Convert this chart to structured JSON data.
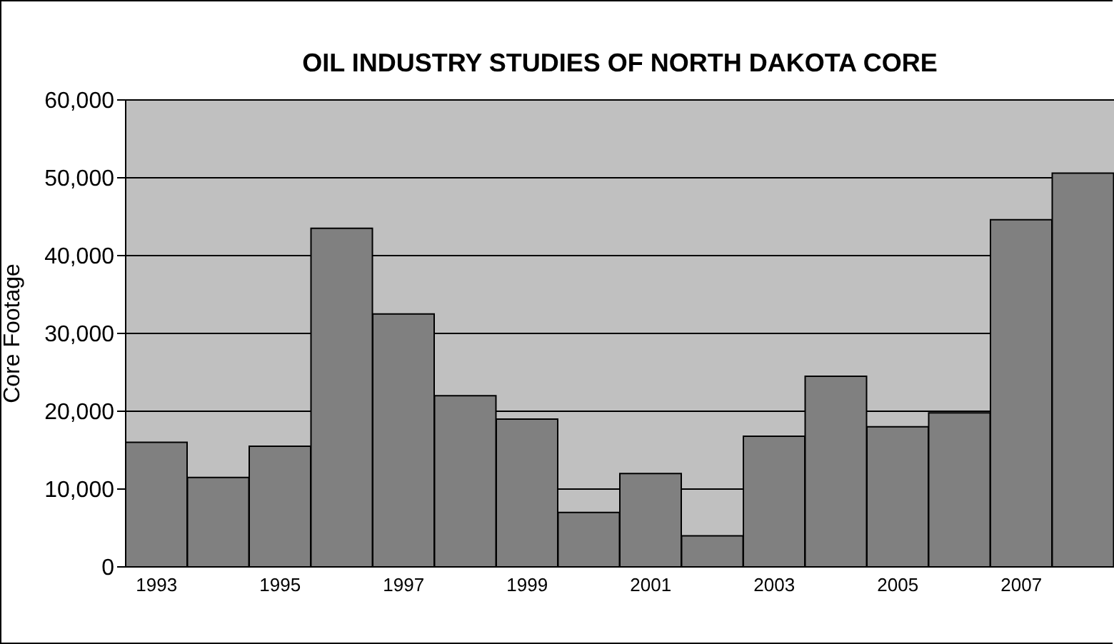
{
  "chart_data": {
    "type": "bar",
    "title": "OIL INDUSTRY STUDIES OF NORTH DAKOTA CORE",
    "ylabel": "Core Footage",
    "categories": [
      "1993",
      null,
      "1995",
      null,
      "1997",
      null,
      "1999",
      null,
      "2001",
      null,
      "2003",
      null,
      "2005",
      null,
      "2007",
      null
    ],
    "values": [
      16000,
      11500,
      15500,
      43500,
      32500,
      22000,
      19000,
      7000,
      12000,
      4000,
      16800,
      24500,
      18000,
      19800,
      44600,
      50600
    ],
    "color": "#808080",
    "ylim": [
      0,
      60000
    ],
    "yticks": [
      0,
      {
        "value": 10000,
        "label": "10,000"
      },
      {
        "value": 20000,
        "label": "20,000"
      },
      {
        "value": 30000,
        "label": "30,000"
      },
      {
        "value": 40000,
        "label": "40,000"
      },
      {
        "value": 50000,
        "label": "50,000"
      },
      {
        "value": 60000,
        "label": "60,000"
      }
    ],
    "grid": "y"
  }
}
